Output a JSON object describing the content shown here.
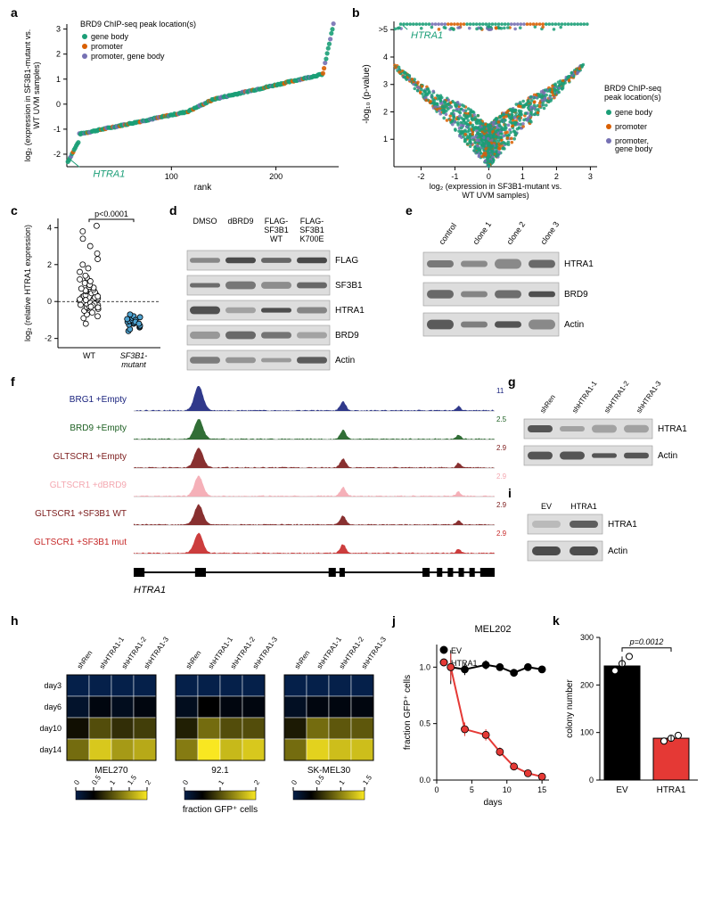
{
  "colors": {
    "gene_body": "#1b9e77",
    "promoter": "#d95f02",
    "both": "#7570b3",
    "brg1": "#1a237e",
    "brd9_track": "#1b5e20",
    "gltscr1_dark": "#7b1a1a",
    "gltscr1_light": "#f4a7b0",
    "gltscr1_red": "#c62828",
    "ev_line": "#000000",
    "htra1_line": "#e53935",
    "bar_ev": "#000000",
    "bar_htra1": "#e53935",
    "heat_low": "#05204a",
    "heat_mid": "#000000",
    "heat_high": "#f9e721",
    "heat_midhigh": "#8a7a1e"
  },
  "panel_a": {
    "label": "a",
    "legend_title": "BRD9 ChIP-seq peak location(s)",
    "legend_items": [
      "gene body",
      "promoter",
      "promoter, gene body"
    ],
    "x_label": "rank",
    "y_label": "log₂ (expression in SF3B1-mutant vs.\nWT UVM samples)",
    "x_ticks": [
      100,
      200
    ],
    "y_ticks": [
      -2,
      -1,
      0,
      1,
      2,
      3
    ],
    "xlim": [
      0,
      260
    ],
    "ylim": [
      -2.5,
      3.2
    ],
    "htra1_label": "HTRA1",
    "n_points": 255
  },
  "panel_b": {
    "label": "b",
    "x_label": "log₂ (expression in SF3B1-mutant vs.\nWT UVM samples)",
    "y_label": "-log₁₀ (p-value)",
    "x_ticks": [
      -2,
      -1,
      0,
      1,
      2,
      3
    ],
    "y_ticks": [
      1,
      2,
      3,
      4,
      ">5"
    ],
    "xlim": [
      -2.8,
      3.2
    ],
    "ylim": [
      0,
      5.3
    ],
    "legend_title": "BRD9 ChIP-seq\npeak location(s)",
    "legend_items": [
      "gene body",
      "promoter",
      "promoter,\ngene body"
    ],
    "htra1_label": "HTRA1",
    "n_points": 1600
  },
  "panel_c": {
    "label": "c",
    "y_label": "log₂ (relative HTRA1 expression)",
    "y_ticks": [
      -2,
      0,
      2,
      4
    ],
    "ylim": [
      -2.5,
      4.5
    ],
    "categories": [
      "WT",
      "SF3B1-\nmutant"
    ],
    "p_text": "p<0.0001",
    "wt_points": [
      -1.2,
      -0.9,
      -0.8,
      -0.7,
      -0.6,
      -0.5,
      -0.4,
      -0.35,
      -0.3,
      -0.25,
      -0.2,
      -0.15,
      -0.1,
      -0.05,
      0,
      0.05,
      0.1,
      0.15,
      0.2,
      0.25,
      0.3,
      0.35,
      0.4,
      0.45,
      0.5,
      0.55,
      0.6,
      0.65,
      0.7,
      0.75,
      0.8,
      0.9,
      1.0,
      1.1,
      1.2,
      1.3,
      1.4,
      1.6,
      1.8,
      2.0,
      2.3,
      2.6,
      3.0,
      3.4,
      3.8,
      4.1,
      -0.02,
      0.02,
      -0.08,
      0.08,
      -0.12,
      0.12,
      -0.18,
      0.18,
      -0.22,
      0.22,
      -0.28,
      0.28,
      -0.32
    ],
    "mut_points": [
      -1.6,
      -1.5,
      -1.4,
      -1.35,
      -1.3,
      -1.25,
      -1.2,
      -1.15,
      -1.1,
      -1.05,
      -1.0,
      -0.95,
      -0.9,
      -0.85,
      -0.8,
      -1.0,
      -1.1,
      -1.2,
      -0.7
    ],
    "mut_color": "#4fa3d1",
    "wt_color": "#ffffff"
  },
  "panel_d": {
    "label": "d",
    "lanes": [
      "DMSO",
      "dBRD9",
      "FLAG-\nSF3B1\nWT",
      "FLAG-\nSF3B1\nK700E"
    ],
    "rows": [
      "FLAG",
      "SF3B1",
      "HTRA1",
      "BRD9",
      "Actin"
    ]
  },
  "panel_e": {
    "label": "e",
    "lanes": [
      "control",
      "clone 1",
      "clone 2",
      "clone 3"
    ],
    "rows": [
      "HTRA1",
      "BRD9",
      "Actin"
    ]
  },
  "panel_f": {
    "label": "f",
    "tracks": [
      {
        "name": "BRG1 +Empty",
        "color": "#1a237e",
        "scale": "11"
      },
      {
        "name": "BRD9 +Empty",
        "color": "#1b5e20",
        "scale": "2.5"
      },
      {
        "name": "GLTSCR1 +Empty",
        "color": "#7b1a1a",
        "scale": "2.9"
      },
      {
        "name": "GLTSCR1 +dBRD9",
        "color": "#f4a7b0",
        "scale": "2.9"
      },
      {
        "name": "GLTSCR1 +SF3B1 WT",
        "color": "#7b1a1a",
        "scale": "2.9"
      },
      {
        "name": "GLTSCR1 +SF3B1 mut",
        "color": "#c62828",
        "scale": "2.9"
      }
    ],
    "gene": "HTRA1"
  },
  "panel_g": {
    "label": "g",
    "lanes": [
      "shRen",
      "shHTRA1-1",
      "shHTRA1-2",
      "shHTRA1-3"
    ],
    "rows": [
      "HTRA1",
      "Actin"
    ]
  },
  "panel_i": {
    "label": "i",
    "lanes": [
      "EV",
      "HTRA1"
    ],
    "rows": [
      "HTRA1",
      "Actin"
    ]
  },
  "panel_h": {
    "label": "h",
    "rows": [
      "day3",
      "day6",
      "day10",
      "day14"
    ],
    "cols": [
      "shRen",
      "shHTRA1-1",
      "shHTRA1-2",
      "shHTRA1-3"
    ],
    "blocks": [
      {
        "name": "MEL270",
        "cbar": [
          0,
          0.5,
          1.0,
          1.5,
          2.0
        ],
        "data": [
          [
            0,
            0,
            0,
            0
          ],
          [
            0.2,
            0.4,
            0.3,
            0.4
          ],
          [
            0.6,
            1.0,
            0.8,
            0.9
          ],
          [
            1.2,
            1.8,
            1.5,
            1.6
          ]
        ]
      },
      {
        "name": "92.1",
        "cbar": [
          0,
          1,
          2
        ],
        "data": [
          [
            0,
            0,
            0,
            0
          ],
          [
            0.3,
            0.5,
            0.4,
            0.4
          ],
          [
            0.7,
            1.2,
            1.0,
            1.0
          ],
          [
            1.3,
            2.0,
            1.7,
            1.8
          ]
        ]
      },
      {
        "name": "SK-MEL30",
        "cbar": [
          0,
          0.5,
          1.0,
          1.5
        ],
        "data": [
          [
            0,
            0,
            0,
            0
          ],
          [
            0.2,
            0.3,
            0.3,
            0.3
          ],
          [
            0.5,
            0.9,
            0.8,
            0.8
          ],
          [
            0.9,
            1.4,
            1.3,
            1.3
          ]
        ]
      }
    ],
    "y_axis_title": "fraction GFP⁺ cells"
  },
  "panel_j": {
    "label": "j",
    "title": "MEL202",
    "x_label": "days",
    "y_label": "fraction GFP⁺ cells",
    "x_ticks": [
      0,
      5,
      10,
      15
    ],
    "y_ticks": [
      0.0,
      0.5,
      1.0
    ],
    "xlim": [
      0,
      16
    ],
    "ylim": [
      0,
      1.2
    ],
    "series": [
      {
        "name": "EV",
        "color": "#000000",
        "x": [
          2,
          4,
          7,
          9,
          11,
          13,
          15
        ],
        "y": [
          1.0,
          0.98,
          1.02,
          1.0,
          0.95,
          1.0,
          0.98
        ],
        "err": [
          0.15,
          0.05,
          0.04,
          0.03,
          0.03,
          0.03,
          0.03
        ]
      },
      {
        "name": "HTRA1",
        "color": "#e53935",
        "x": [
          2,
          4,
          7,
          9,
          11,
          13,
          15
        ],
        "y": [
          1.0,
          0.45,
          0.4,
          0.25,
          0.12,
          0.06,
          0.03
        ],
        "err": [
          0.12,
          0.06,
          0.05,
          0.04,
          0.03,
          0.02,
          0.02
        ]
      }
    ]
  },
  "panel_k": {
    "label": "k",
    "y_label": "colony number",
    "y_ticks": [
      0,
      100,
      200,
      300
    ],
    "ylim": [
      0,
      300
    ],
    "categories": [
      "EV",
      "HTRA1"
    ],
    "values": [
      240,
      88
    ],
    "colors": [
      "#000000",
      "#e53935"
    ],
    "points": [
      [
        230,
        245,
        260
      ],
      [
        82,
        88,
        94
      ]
    ],
    "p_text": "p=0.0012"
  }
}
